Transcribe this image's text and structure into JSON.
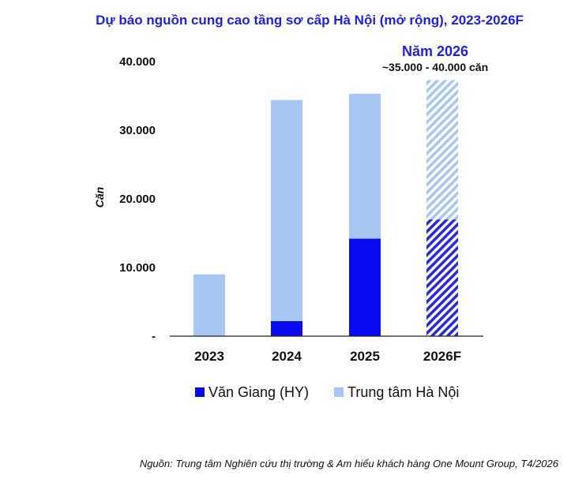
{
  "chart_data": {
    "type": "bar",
    "stacked": true,
    "title": "Dự báo nguồn cung cao tầng sơ cấp Hà Nội (mở rộng), 2023-2026F",
    "ylabel": "Căn",
    "xlabel": "",
    "categories": [
      "2023",
      "2024",
      "2025",
      "2026F"
    ],
    "forecast_categories": [
      "2026F"
    ],
    "series": [
      {
        "name": "Văn Giang (HY)",
        "values": [
          0,
          2200,
          14200,
          17000
        ],
        "color": "#0a0af0"
      },
      {
        "name": "Trung tâm Hà Nội",
        "values": [
          9000,
          32200,
          21100,
          20300
        ],
        "color": "#a8c6f2"
      }
    ],
    "ylim": [
      0,
      40000
    ],
    "yticks": [
      0,
      10000,
      20000,
      30000,
      40000
    ],
    "ytick_labels": [
      "-",
      "10.000",
      "20.000",
      "30.000",
      "40.000"
    ],
    "grid": false,
    "legend_position": "bottom",
    "annotation": {
      "title": "Năm 2026",
      "subtitle": "~35.000 - 40.000 căn"
    },
    "source": "Nguồn: Trung tâm Nghiên cứu thị trường & Am hiểu khách hàng One Mount Group, T4/2026"
  }
}
